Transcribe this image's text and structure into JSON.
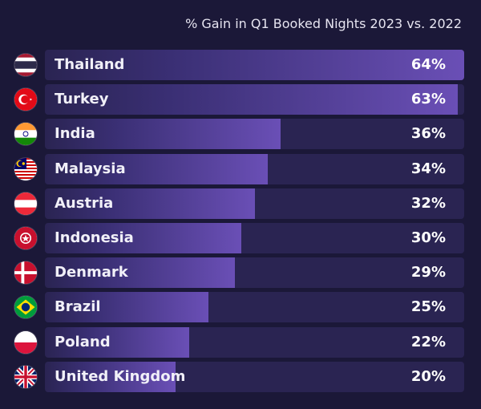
{
  "chart_data": {
    "type": "bar",
    "orientation": "horizontal",
    "title": "% Gain in Q1 Booked Nights 2023 vs. 2022",
    "categories": [
      "Thailand",
      "Turkey",
      "India",
      "Malaysia",
      "Austria",
      "Indonesia",
      "Denmark",
      "Brazil",
      "Poland",
      "United Kingdom"
    ],
    "values": [
      64,
      63,
      36,
      34,
      32,
      30,
      29,
      25,
      22,
      20
    ],
    "labels": [
      "64%",
      "63%",
      "36%",
      "34%",
      "32%",
      "30%",
      "29%",
      "25%",
      "22%",
      "20%"
    ],
    "flag_icons": [
      "thailand-flag-icon",
      "turkey-flag-icon",
      "india-flag-icon",
      "malaysia-flag-icon",
      "austria-flag-icon",
      "indonesia-flag-icon",
      "denmark-flag-icon",
      "brazil-flag-icon",
      "poland-flag-icon",
      "uk-flag-icon"
    ],
    "xlim": [
      0,
      64
    ],
    "grid": false,
    "legend": "none",
    "colors": {
      "background": "#1b1838",
      "bar_track": "#2a2452",
      "bar_high": "#6a4fb6",
      "bar_low": "#3a2f74"
    }
  }
}
